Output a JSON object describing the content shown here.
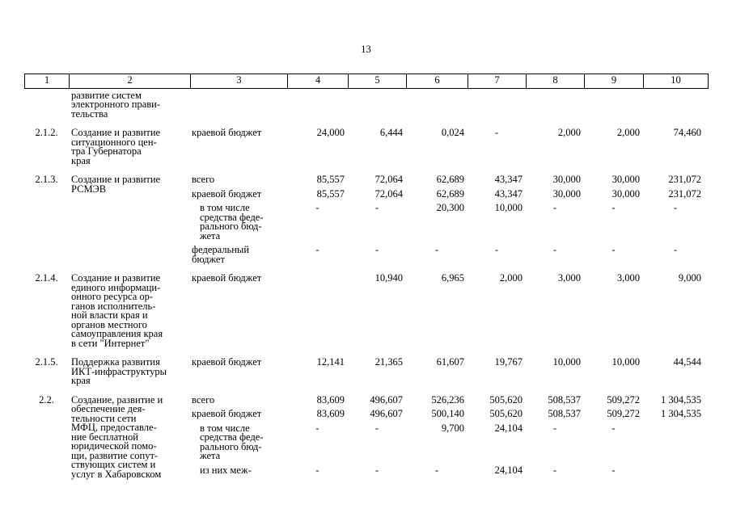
{
  "page_number": "13",
  "table": {
    "headers": [
      "1",
      "2",
      "3",
      "4",
      "5",
      "6",
      "7",
      "8",
      "9",
      "10"
    ],
    "rows": [
      {
        "num": "",
        "name": "развитие систем\nэлектронного прави-\nтельства",
        "subrows": []
      },
      {
        "num": "2.1.2.",
        "name": "Создание и развитие\nситуационного цен-\nтра Губернатора\nкрая",
        "subrows": [
          {
            "label": "краевой бюджет",
            "values": [
              "24,000",
              "6,444",
              "0,024",
              "-",
              "2,000",
              "2,000",
              "74,460"
            ]
          }
        ]
      },
      {
        "num": "2.1.3.",
        "name": "Создание и развитие\nРСМЭВ",
        "subrows": [
          {
            "label": "всего",
            "values": [
              "85,557",
              "72,064",
              "62,689",
              "43,347",
              "30,000",
              "30,000",
              "231,072"
            ]
          },
          {
            "label": "краевой бюджет",
            "values": [
              "85,557",
              "72,064",
              "62,689",
              "43,347",
              "30,000",
              "30,000",
              "231,072"
            ]
          },
          {
            "label": "в том числе\nсредства феде-\nрального бюд-\nжета",
            "indent": true,
            "values": [
              "-",
              "-",
              "20,300",
              "10,000",
              "-",
              "-",
              "-"
            ]
          },
          {
            "label": "федеральный\nбюджет",
            "values": [
              "-",
              "-",
              "-",
              "-",
              "-",
              "-",
              "-"
            ]
          }
        ]
      },
      {
        "num": "2.1.4.",
        "name": "Создание и развитие\nединого информаци-\nонного ресурса ор-\nганов исполнитель-\nной власти края и\nорганов местного\nсамоуправления края\nв сети \"Интернет\"",
        "subrows": [
          {
            "label": "краевой бюджет",
            "values": [
              "",
              "10,940",
              "6,965",
              "2,000",
              "3,000",
              "3,000",
              "9,000"
            ]
          }
        ]
      },
      {
        "num": "2.1.5.",
        "name": "Поддержка развития\nИКТ-инфраструктуры\nкрая",
        "subrows": [
          {
            "label": "краевой бюджет",
            "values": [
              "12,141",
              "21,365",
              "61,607",
              "19,767",
              "10,000",
              "10,000",
              "44,544"
            ]
          }
        ]
      },
      {
        "num": "2.2.",
        "name": "Создание, развитие и\nобеспечение дея-\nтельности сети\nМФЦ, предоставле-\nние бесплатной\nюридической помо-\nщи, развитие сопут-\nствующих систем и\nуслуг в Хабаровском",
        "subrows": [
          {
            "label": "всего",
            "values": [
              "83,609",
              "496,607",
              "526,236",
              "505,620",
              "508,537",
              "509,272",
              "1 304,535"
            ]
          },
          {
            "label": "краевой бюджет",
            "values": [
              "83,609",
              "496,607",
              "500,140",
              "505,620",
              "508,537",
              "509,272",
              "1 304,535"
            ]
          },
          {
            "label": "в том числе\nсредства феде-\nрального бюд-\nжета",
            "indent": true,
            "values": [
              "-",
              "-",
              "9,700",
              "24,104",
              "-",
              "-",
              ""
            ]
          },
          {
            "label": "из них меж-",
            "indent": true,
            "values": [
              "-",
              "-",
              "-",
              "24,104",
              "-",
              "-",
              ""
            ]
          }
        ]
      }
    ]
  }
}
